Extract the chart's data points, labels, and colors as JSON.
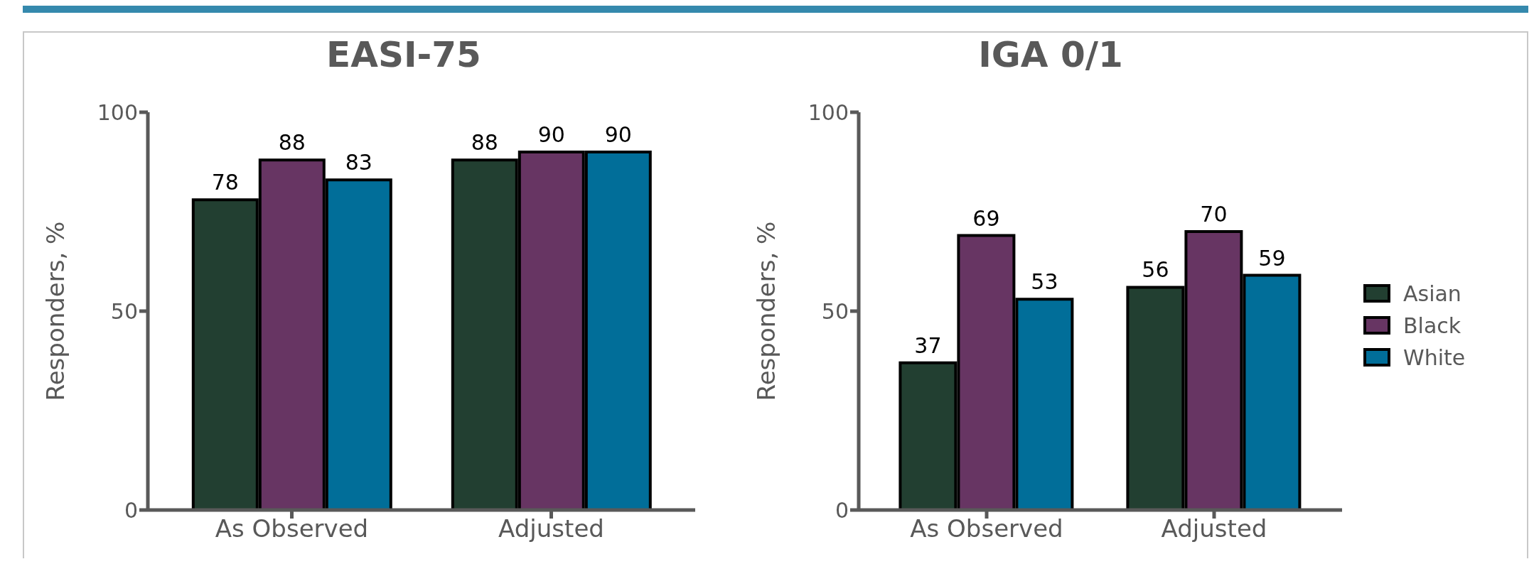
{
  "chart_data": [
    {
      "type": "bar",
      "title": "EASI-75",
      "ylabel": "Responders, %",
      "categories": [
        "As Observed",
        "Adjusted"
      ],
      "ylim": [
        0,
        100
      ],
      "yticks": [
        0,
        50,
        100
      ],
      "grid": false,
      "legend": false,
      "data_labels": true,
      "series": [
        {
          "color": "#223f31",
          "values": [
            78,
            88
          ]
        },
        {
          "color": "#673563",
          "values": [
            88,
            90
          ]
        },
        {
          "color": "#016e99",
          "values": [
            83,
            90
          ]
        }
      ]
    },
    {
      "type": "bar",
      "title": "IGA 0/1",
      "ylabel": "Responders, %",
      "categories": [
        "As Observed",
        "Adjusted"
      ],
      "ylim": [
        0,
        100
      ],
      "yticks": [
        0,
        50,
        100
      ],
      "grid": false,
      "legend": "right",
      "data_labels": true,
      "series": [
        {
          "name": "Asian",
          "color": "#223f31",
          "values": [
            37,
            56
          ]
        },
        {
          "name": "Black",
          "color": "#673563",
          "values": [
            69,
            70
          ]
        },
        {
          "name": "White",
          "color": "#016e99",
          "values": [
            53,
            59
          ]
        }
      ]
    }
  ]
}
